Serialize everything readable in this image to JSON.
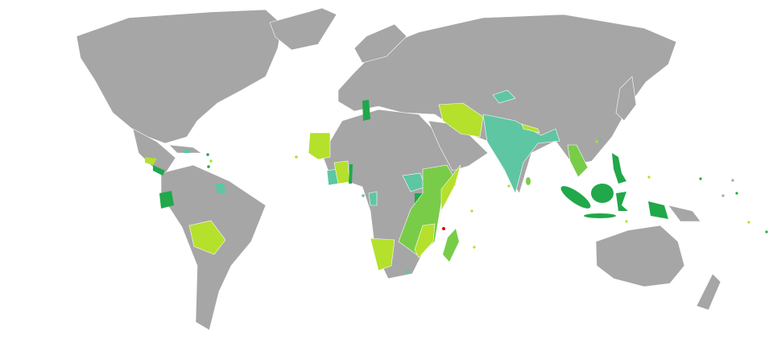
{
  "map": {
    "type": "choropleth-world-map",
    "projection": "robinson-like",
    "colors": {
      "ocean": "#ffffff",
      "no_data_land": "#a6a6a6",
      "category_dark_green": "#20a84a",
      "category_medium_green": "#79cc48",
      "category_light_green": "#b5e02c",
      "category_teal": "#5ec6a2",
      "category_red": "#e00000",
      "borders": "#ffffff"
    }
  }
}
